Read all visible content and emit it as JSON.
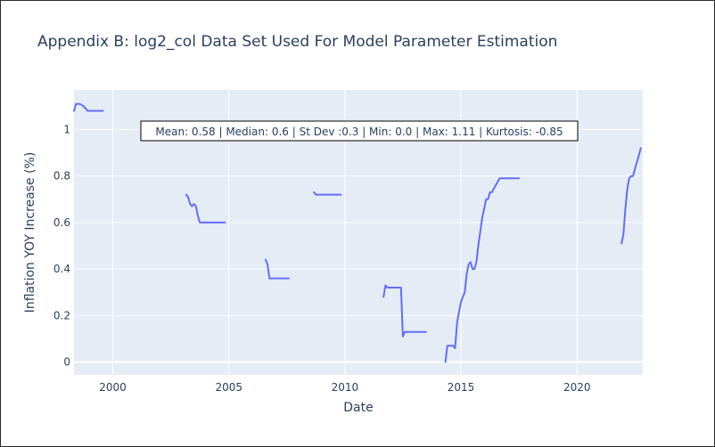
{
  "chart_data": {
    "type": "line",
    "title": "Appendix B: log2_col Data Set Used For Model Parameter Estimation",
    "xlabel": "Date",
    "ylabel": "Inflation YOY Increase (%)",
    "xlim": [
      "1998-05-01",
      "2022-11-01"
    ],
    "ylim": [
      -0.055,
      1.17
    ],
    "x_ticks": [
      {
        "value": "2000-01-01",
        "label": "2000"
      },
      {
        "value": "2005-01-01",
        "label": "2005"
      },
      {
        "value": "2010-01-01",
        "label": "2010"
      },
      {
        "value": "2015-01-01",
        "label": "2015"
      },
      {
        "value": "2020-01-01",
        "label": "2020"
      }
    ],
    "y_ticks": [
      0,
      0.2,
      0.4,
      0.6,
      0.8,
      1
    ],
    "y_tick_labels": [
      "0",
      "0.2",
      "0.4",
      "0.6",
      "0.8",
      "1"
    ],
    "grid": true,
    "annotation": "Mean: 0.58 | Median: 0.6 | St Dev :0.3 | Min: 0.0 | Max: 1.11 | Kurtosis: -0.85",
    "colors": {
      "line": "#636efa",
      "plot_bg": "#e5ecf6",
      "grid": "#ffffff",
      "text": "#2a3f5f"
    },
    "series": [
      {
        "segments": [
          [
            [
              "1998-05-01",
              1.08
            ],
            [
              "1998-06-01",
              1.11
            ],
            [
              "1998-08-01",
              1.11
            ],
            [
              "1998-10-01",
              1.1
            ],
            [
              "1998-12-01",
              1.08
            ],
            [
              "1999-04-01",
              1.08
            ],
            [
              "1999-08-01",
              1.08
            ]
          ],
          [
            [
              "2003-03-01",
              0.72
            ],
            [
              "2003-04-01",
              0.71
            ],
            [
              "2003-05-01",
              0.68
            ],
            [
              "2003-06-01",
              0.67
            ],
            [
              "2003-07-01",
              0.68
            ],
            [
              "2003-08-01",
              0.67
            ],
            [
              "2003-09-01",
              0.63
            ],
            [
              "2003-10-01",
              0.6
            ],
            [
              "2004-03-01",
              0.6
            ],
            [
              "2004-11-01",
              0.6
            ]
          ],
          [
            [
              "2006-08-01",
              0.44
            ],
            [
              "2006-09-01",
              0.42
            ],
            [
              "2006-10-01",
              0.36
            ],
            [
              "2007-03-01",
              0.36
            ],
            [
              "2007-08-01",
              0.36
            ]
          ],
          [
            [
              "2008-09-01",
              0.73
            ],
            [
              "2008-10-01",
              0.72
            ],
            [
              "2009-03-01",
              0.72
            ],
            [
              "2009-11-01",
              0.72
            ]
          ],
          [
            [
              "2011-09-01",
              0.28
            ],
            [
              "2011-10-01",
              0.33
            ],
            [
              "2011-11-01",
              0.32
            ],
            [
              "2012-02-01",
              0.32
            ],
            [
              "2012-06-01",
              0.32
            ],
            [
              "2012-07-01",
              0.11
            ],
            [
              "2012-08-01",
              0.13
            ],
            [
              "2013-01-01",
              0.13
            ],
            [
              "2013-07-01",
              0.13
            ]
          ],
          [
            [
              "2014-05-01",
              0.0
            ],
            [
              "2014-06-01",
              0.07
            ],
            [
              "2014-09-01",
              0.07
            ],
            [
              "2014-10-01",
              0.06
            ],
            [
              "2014-11-01",
              0.17
            ],
            [
              "2015-01-01",
              0.26
            ],
            [
              "2015-03-01",
              0.3
            ],
            [
              "2015-04-01",
              0.38
            ],
            [
              "2015-05-01",
              0.42
            ],
            [
              "2015-06-01",
              0.43
            ],
            [
              "2015-07-01",
              0.4
            ],
            [
              "2015-08-01",
              0.4
            ],
            [
              "2015-09-01",
              0.43
            ],
            [
              "2015-10-01",
              0.5
            ],
            [
              "2015-11-01",
              0.56
            ],
            [
              "2015-12-01",
              0.62
            ],
            [
              "2016-01-01",
              0.66
            ],
            [
              "2016-02-01",
              0.7
            ],
            [
              "2016-03-01",
              0.7
            ],
            [
              "2016-04-01",
              0.73
            ],
            [
              "2016-05-01",
              0.73
            ],
            [
              "2016-07-01",
              0.76
            ],
            [
              "2016-09-01",
              0.79
            ],
            [
              "2017-01-01",
              0.79
            ],
            [
              "2017-07-01",
              0.79
            ]
          ],
          [
            [
              "2021-12-01",
              0.51
            ],
            [
              "2022-01-01",
              0.55
            ],
            [
              "2022-02-01",
              0.66
            ],
            [
              "2022-03-01",
              0.74
            ],
            [
              "2022-04-01",
              0.79
            ],
            [
              "2022-05-01",
              0.8
            ],
            [
              "2022-06-01",
              0.8
            ],
            [
              "2022-07-01",
              0.83
            ],
            [
              "2022-08-01",
              0.86
            ],
            [
              "2022-09-01",
              0.89
            ],
            [
              "2022-10-01",
              0.92
            ]
          ]
        ]
      }
    ]
  }
}
